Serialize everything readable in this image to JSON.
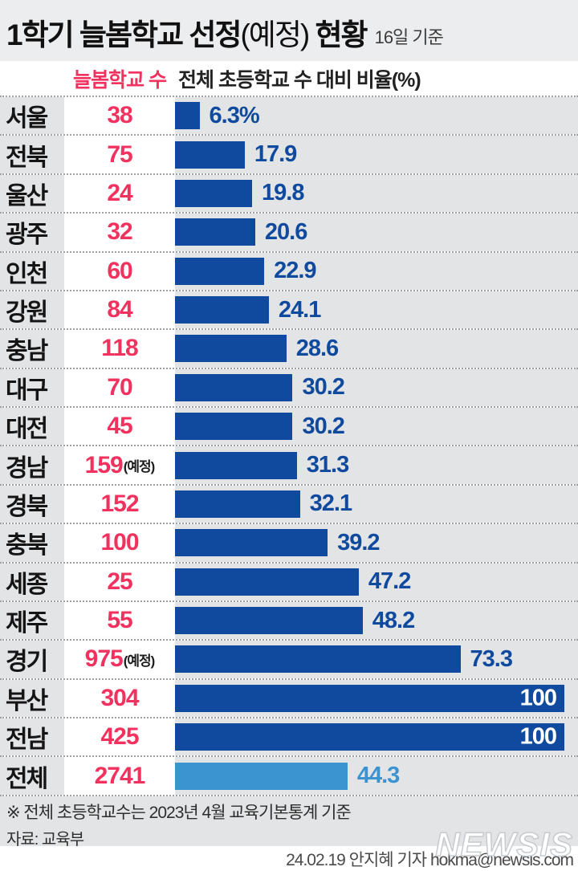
{
  "title": {
    "parts": [
      {
        "text": "1학기 늘봄학교 선정",
        "bold": true
      },
      {
        "text": "(예정)",
        "bold": false
      },
      {
        "text": " 현황",
        "bold": true
      }
    ],
    "full": "1학기 늘봄학교 선정(예정) 현황",
    "date_note": "16일 기준"
  },
  "columns": {
    "count_header": "늘봄학교 수",
    "ratio_header": "전체 초등학교 수 대비 비율(%)"
  },
  "colors": {
    "bar_blue": "#0f4a9e",
    "bar_total_blue": "#3b93d0",
    "count_pink": "#f1325f",
    "table_gray": "#e2e4e6",
    "title_band_gray": "#ecedee"
  },
  "rows": [
    {
      "region": "서울",
      "count": "38",
      "suffix": "",
      "ratio": 6.3,
      "ratio_label": "6.3%",
      "inside": false,
      "total": false
    },
    {
      "region": "전북",
      "count": "75",
      "suffix": "",
      "ratio": 17.9,
      "ratio_label": "17.9",
      "inside": false,
      "total": false
    },
    {
      "region": "울산",
      "count": "24",
      "suffix": "",
      "ratio": 19.8,
      "ratio_label": "19.8",
      "inside": false,
      "total": false
    },
    {
      "region": "광주",
      "count": "32",
      "suffix": "",
      "ratio": 20.6,
      "ratio_label": "20.6",
      "inside": false,
      "total": false
    },
    {
      "region": "인천",
      "count": "60",
      "suffix": "",
      "ratio": 22.9,
      "ratio_label": "22.9",
      "inside": false,
      "total": false
    },
    {
      "region": "강원",
      "count": "84",
      "suffix": "",
      "ratio": 24.1,
      "ratio_label": "24.1",
      "inside": false,
      "total": false
    },
    {
      "region": "충남",
      "count": "118",
      "suffix": "",
      "ratio": 28.6,
      "ratio_label": "28.6",
      "inside": false,
      "total": false
    },
    {
      "region": "대구",
      "count": "70",
      "suffix": "",
      "ratio": 30.2,
      "ratio_label": "30.2",
      "inside": false,
      "total": false
    },
    {
      "region": "대전",
      "count": "45",
      "suffix": "",
      "ratio": 30.2,
      "ratio_label": "30.2",
      "inside": false,
      "total": false
    },
    {
      "region": "경남",
      "count": "159",
      "suffix": "(예정)",
      "ratio": 31.3,
      "ratio_label": "31.3",
      "inside": false,
      "total": false
    },
    {
      "region": "경북",
      "count": "152",
      "suffix": "",
      "ratio": 32.1,
      "ratio_label": "32.1",
      "inside": false,
      "total": false
    },
    {
      "region": "충북",
      "count": "100",
      "suffix": "",
      "ratio": 39.2,
      "ratio_label": "39.2",
      "inside": false,
      "total": false
    },
    {
      "region": "세종",
      "count": "25",
      "suffix": "",
      "ratio": 47.2,
      "ratio_label": "47.2",
      "inside": false,
      "total": false
    },
    {
      "region": "제주",
      "count": "55",
      "suffix": "",
      "ratio": 48.2,
      "ratio_label": "48.2",
      "inside": false,
      "total": false
    },
    {
      "region": "경기",
      "count": "975",
      "suffix": "(예정)",
      "ratio": 73.3,
      "ratio_label": "73.3",
      "inside": false,
      "total": false
    },
    {
      "region": "부산",
      "count": "304",
      "suffix": "",
      "ratio": 100,
      "ratio_label": "100",
      "inside": true,
      "total": false
    },
    {
      "region": "전남",
      "count": "425",
      "suffix": "",
      "ratio": 100,
      "ratio_label": "100",
      "inside": true,
      "total": false
    },
    {
      "region": "전체",
      "count": "2741",
      "suffix": "",
      "ratio": 44.3,
      "ratio_label": "44.3",
      "inside": false,
      "total": true
    }
  ],
  "chart_data": {
    "type": "bar",
    "orientation": "horizontal",
    "title": "1학기 늘봄학교 선정(예정) 현황",
    "subtitle": "16일 기준",
    "categories": [
      "서울",
      "전북",
      "울산",
      "광주",
      "인천",
      "강원",
      "충남",
      "대구",
      "대전",
      "경남",
      "경북",
      "충북",
      "세종",
      "제주",
      "경기",
      "부산",
      "전남",
      "전체"
    ],
    "series": [
      {
        "name": "늘봄학교 수",
        "values": [
          38,
          75,
          24,
          32,
          60,
          84,
          118,
          70,
          45,
          159,
          152,
          100,
          25,
          55,
          975,
          304,
          425,
          2741
        ]
      },
      {
        "name": "전체 초등학교 수 대비 비율(%)",
        "values": [
          6.3,
          17.9,
          19.8,
          20.6,
          22.9,
          24.1,
          28.6,
          30.2,
          30.2,
          31.3,
          32.1,
          39.2,
          47.2,
          48.2,
          73.3,
          100,
          100,
          44.3
        ]
      }
    ],
    "planned_flag_rows": [
      "경남",
      "경기"
    ],
    "highlight_row": "전체",
    "xlim": [
      0,
      100
    ],
    "grid": false,
    "legend_position": "top"
  },
  "footer": {
    "footnote": "※ 전체 초등학교수는 2023년 4월 교육기본통계 기준",
    "source": "자료: 교육부",
    "byline": "24.02.19 안지혜 기자 hokma@newsis.com",
    "watermark": "NEWSIS"
  }
}
